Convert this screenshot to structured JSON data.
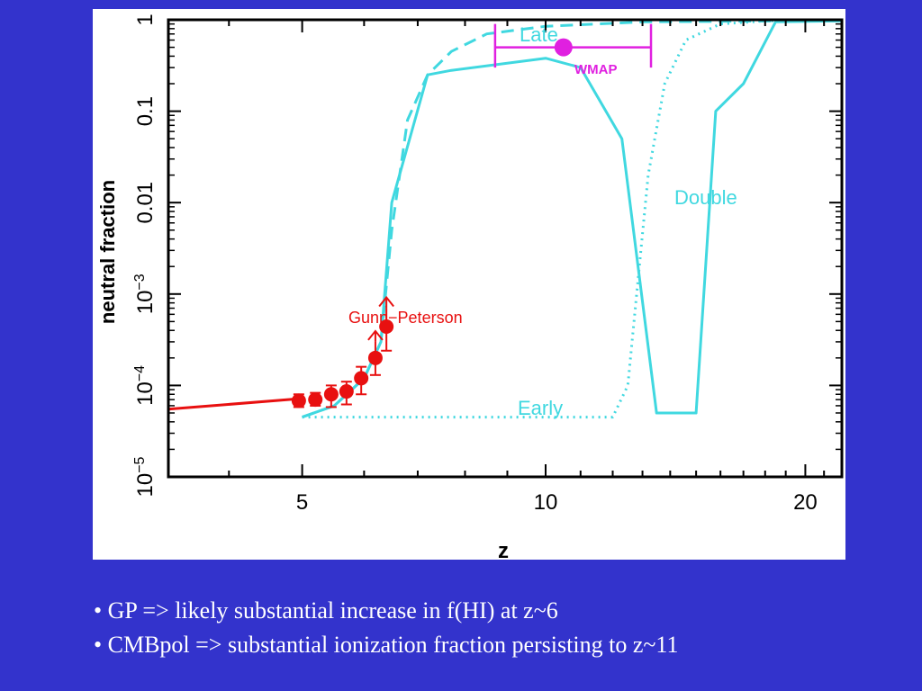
{
  "colors": {
    "slide_background": "#3333cc",
    "cyan": "#40d8e0",
    "red": "#e81010",
    "magenta": "#e020e0",
    "text": "#ffffff"
  },
  "chart_data": {
    "type": "line",
    "xlabel": "z",
    "ylabel": "neutral fraction",
    "x_scale": "log(1+z)",
    "y_scale": "log",
    "xlim": [
      3.3,
      22
    ],
    "ylim": [
      1e-05,
      1
    ],
    "x_ticks": [
      5,
      10,
      20
    ],
    "y_ticks": [
      {
        "value": 1,
        "label": "1"
      },
      {
        "value": 0.1,
        "label": "0.1"
      },
      {
        "value": 0.01,
        "label": "0.01"
      },
      {
        "value": 0.001,
        "label": "10",
        "exp": "−3"
      },
      {
        "value": 0.0001,
        "label": "10",
        "exp": "−4"
      },
      {
        "value": 1e-05,
        "label": "10",
        "exp": "−5"
      }
    ],
    "series": [
      {
        "name": "Late",
        "style": "dashed",
        "color": "#40d8e0",
        "x": [
          5.0,
          5.5,
          6.0,
          6.3,
          6.5,
          6.8,
          7.2,
          7.7,
          8.5,
          10,
          13,
          22
        ],
        "y": [
          4.5e-05,
          6e-05,
          0.00012,
          0.0003,
          0.005,
          0.08,
          0.25,
          0.45,
          0.7,
          0.85,
          0.95,
          0.98
        ]
      },
      {
        "name": "Double",
        "style": "solid",
        "color": "#40d8e0",
        "x": [
          5.0,
          5.5,
          6.0,
          6.3,
          6.5,
          7.2,
          7.7,
          10,
          11,
          12.3,
          13.5,
          15.0,
          15.8,
          17,
          18.5,
          22
        ],
        "y": [
          4.5e-05,
          6e-05,
          0.00012,
          0.0003,
          0.01,
          0.25,
          0.28,
          0.38,
          0.3,
          0.05,
          5e-05,
          5e-05,
          0.1,
          0.2,
          0.95,
          0.97
        ]
      },
      {
        "name": "Early",
        "style": "dotted",
        "color": "#40d8e0",
        "x": [
          5.0,
          12,
          12.5,
          12.8,
          13.2,
          13.8,
          14.6,
          16,
          18,
          22
        ],
        "y": [
          4.5e-05,
          4.5e-05,
          0.0001,
          0.001,
          0.02,
          0.2,
          0.6,
          0.9,
          0.97,
          0.98
        ]
      },
      {
        "name": "",
        "style": "solid",
        "color": "#e81010",
        "x": [
          3.3,
          5.0
        ],
        "y": [
          5.5e-05,
          7.2e-05
        ]
      }
    ],
    "gunn_peterson": {
      "name": "Gunn−Peterson",
      "color": "#e81010",
      "points": [
        {
          "x": 4.95,
          "y": 6.8e-05,
          "lo": 5.8e-05,
          "hi": 8e-05
        },
        {
          "x": 5.2,
          "y": 7e-05,
          "lo": 6e-05,
          "hi": 8.3e-05
        },
        {
          "x": 5.45,
          "y": 8e-05,
          "lo": 5.8e-05,
          "hi": 0.0001
        },
        {
          "x": 5.7,
          "y": 8.6e-05,
          "lo": 6.2e-05,
          "hi": 0.00011
        },
        {
          "x": 5.95,
          "y": 0.00012,
          "lo": 8e-05,
          "hi": 0.00016
        },
        {
          "x": 6.2,
          "y": 0.0002,
          "lo": 0.00013,
          "hi": 0.0003,
          "lower_limit": true
        },
        {
          "x": 6.4,
          "y": 0.00044,
          "lo": 0.00024,
          "hi": 0.0007,
          "lower_limit": true
        }
      ]
    },
    "wmap": {
      "label": "WMAP",
      "color": "#e020e0",
      "x": 10.5,
      "y": 0.5,
      "xmin": 8.7,
      "xmax": 13.3,
      "bar_height": [
        0.3,
        0.9
      ]
    },
    "annotations": [
      {
        "text": "Late",
        "series": "Late"
      },
      {
        "text": "Double",
        "series": "Double"
      },
      {
        "text": "Early",
        "series": "Early"
      }
    ]
  },
  "bullets": [
    "• GP => likely substantial increase in f(HI) at z~6",
    "• CMBpol => substantial ionization fraction persisting to z~11"
  ]
}
